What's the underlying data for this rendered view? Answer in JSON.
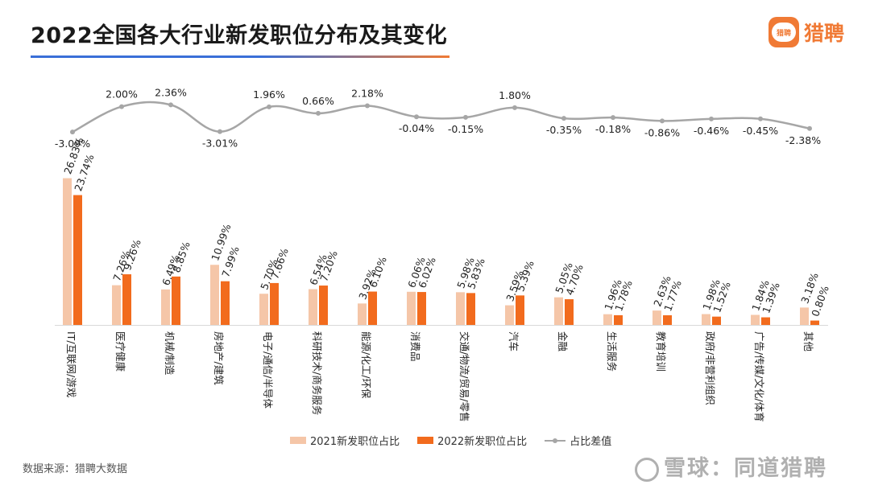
{
  "title": "2022全国各大行业新发职位分布及其变化",
  "logo": {
    "badge_text": "猎聘",
    "text": "猎聘"
  },
  "source": "数据来源：猎聘大数据",
  "watermark": "雪球：同道猎聘",
  "colors": {
    "series_2021": "#f5c6a8",
    "series_2022": "#f26b1d",
    "diff_line": "#a6a6a6",
    "accent": "#f07a35"
  },
  "chart_data": {
    "type": "bar",
    "title": "2022全国各大行业新发职位分布及其变化",
    "categories": [
      "IT/互联网/游戏",
      "医疗健康",
      "机械/制造",
      "房地产/建筑",
      "电子/通信/半导体",
      "科研技术/商务服务",
      "能源/化工/环保",
      "消费品",
      "交通/物流/贸易/零售",
      "汽车",
      "金融",
      "生活服务",
      "教育培训",
      "政府/非营利组织",
      "广告/传媒/文化/体育",
      "其他"
    ],
    "series": [
      {
        "name": "2021新发职位占比",
        "values": [
          26.83,
          7.26,
          6.49,
          10.99,
          5.7,
          6.54,
          3.92,
          6.06,
          5.98,
          3.59,
          5.05,
          1.96,
          2.63,
          1.98,
          1.84,
          3.18
        ],
        "labels": [
          "26.83%",
          "7.26%",
          "6.49%",
          "10.99%",
          "5.70%",
          "6.54%",
          "3.92%",
          "6.06%",
          "5.98%",
          "3.59%",
          "5.05%",
          "1.96%",
          "2.63%",
          "1.98%",
          "1.84%",
          "3.18%"
        ]
      },
      {
        "name": "2022新发职位占比",
        "values": [
          23.74,
          9.26,
          8.85,
          7.99,
          7.66,
          7.2,
          6.1,
          6.02,
          5.83,
          5.39,
          4.7,
          1.78,
          1.77,
          1.52,
          1.39,
          0.8
        ],
        "labels": [
          "23.74%",
          "9.26%",
          "8.85%",
          "7.99%",
          "7.66%",
          "7.20%",
          "6.10%",
          "6.02%",
          "5.83%",
          "5.39%",
          "4.70%",
          "1.78%",
          "1.77%",
          "1.52%",
          "1.39%",
          "0.80%"
        ]
      }
    ],
    "diff": {
      "name": "占比差值",
      "type": "line",
      "values": [
        -3.09,
        2.0,
        2.36,
        -3.01,
        1.96,
        0.66,
        2.18,
        -0.04,
        -0.15,
        1.8,
        -0.35,
        -0.18,
        -0.86,
        -0.46,
        -0.45,
        -2.38
      ],
      "labels": [
        "-3.09%",
        "2.00%",
        "2.36%",
        "-3.01%",
        "1.96%",
        "0.66%",
        "2.18%",
        "-0.04%",
        "-0.15%",
        "1.80%",
        "-0.35%",
        "-0.18%",
        "-0.86%",
        "-0.46%",
        "-0.45%",
        "-2.38%"
      ]
    },
    "legend": [
      "2021新发职位占比",
      "2022新发职位占比",
      "占比差值"
    ],
    "legend_position": "bottom",
    "grid": false
  }
}
